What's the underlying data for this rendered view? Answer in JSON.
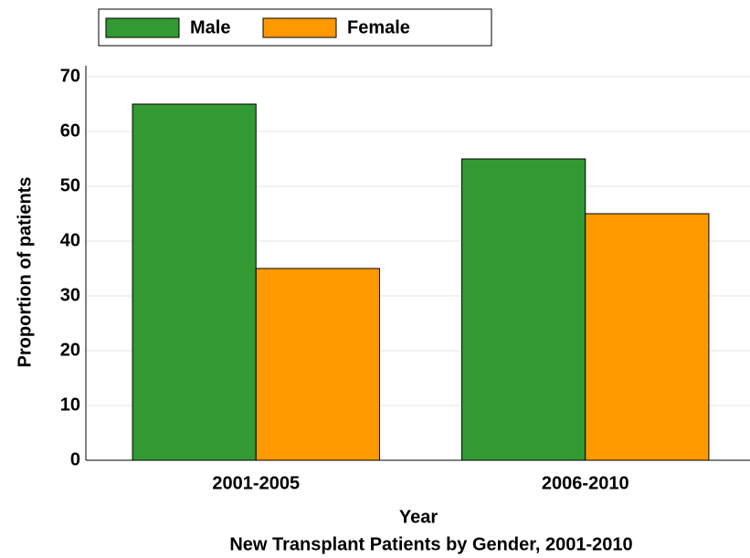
{
  "chart_data": {
    "type": "bar",
    "title": "New Transplant Patients by Gender, 2001-2010",
    "x_label": "Year",
    "y_label": "Proportion of patients",
    "categories": [
      "2001-2005",
      "2006-2010"
    ],
    "series": [
      {
        "name": "Male",
        "color": "#339933",
        "values": [
          65,
          55
        ]
      },
      {
        "name": "Female",
        "color": "#ff9900",
        "values": [
          35,
          45
        ]
      }
    ],
    "ylim": [
      0,
      72
    ],
    "yticks": [
      0,
      10,
      20,
      30,
      40,
      50,
      60,
      70
    ],
    "grid": true,
    "legend": "top"
  }
}
